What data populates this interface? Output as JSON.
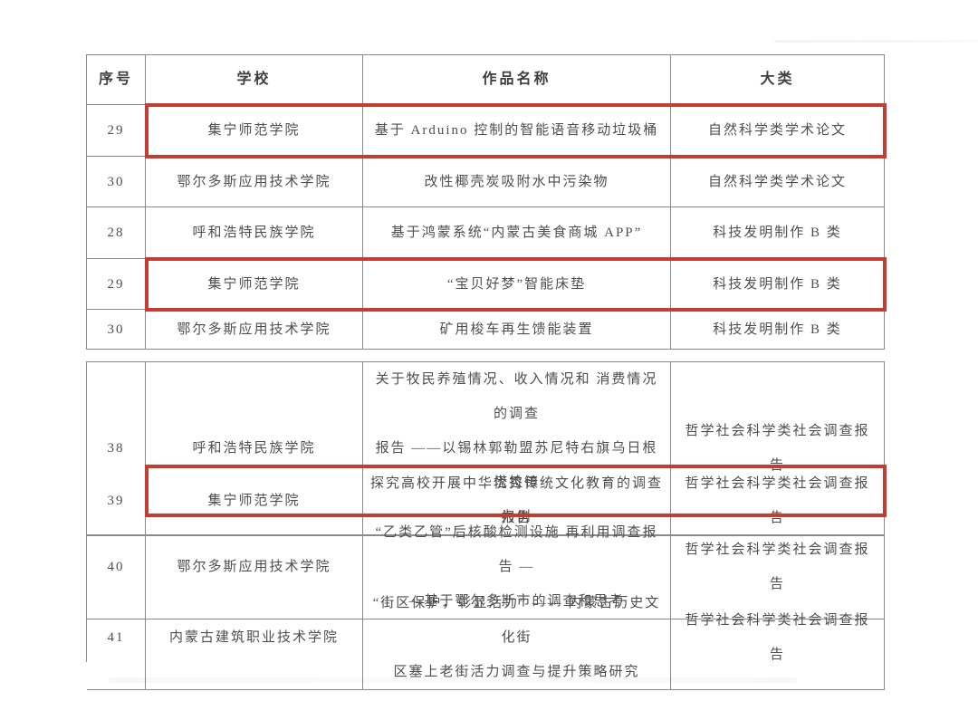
{
  "accent_red": "#c43d32",
  "border_gray": "#8a8a8a",
  "table": {
    "header": {
      "no": "序号",
      "school": "学校",
      "work": "作品名称",
      "category": "大类"
    },
    "section1": {
      "rows": [
        {
          "no": "29",
          "school": "集宁师范学院",
          "work": "基于 Arduino 控制的智能语音移动垃圾桶",
          "category": "自然科学类学术论文",
          "highlighted": true
        },
        {
          "no": "30",
          "school": "鄂尔多斯应用技术学院",
          "work": "改性椰壳炭吸附水中污染物",
          "category": "自然科学类学术论文",
          "highlighted": false
        },
        {
          "no": "28",
          "school": "呼和浩特民族学院",
          "work": "基于鸿蒙系统“内蒙古美食商城 APP”",
          "category": "科技发明制作 B 类",
          "highlighted": false
        },
        {
          "no": "29",
          "school": "集宁师范学院",
          "work": "“宝贝好梦”智能床垫",
          "category": "科技发明制作 B 类",
          "highlighted": true
        },
        {
          "no": "30",
          "school": "鄂尔多斯应用技术学院",
          "work": "矿用梭车再生馈能装置",
          "category": "科技发明制作 B 类",
          "highlighted": false
        }
      ]
    },
    "section2": {
      "rows": [
        {
          "no": "38",
          "school": "呼和浩特民族学院",
          "work": "关于牧民养殖情况、收入情况和 消费情况的调查\n报告 ——以锡林郭勒盟苏尼特右旗乌日根塔拉镇\n为例",
          "category": "哲学社会科学类社会调查报告",
          "highlighted": false
        },
        {
          "no": "39",
          "school": "集宁师范学院",
          "work": "探究高校开展中华优秀传统文化教育的调查报告",
          "category": "哲学社会科学类社会调查报告",
          "highlighted": true
        },
        {
          "no": "40",
          "school": "鄂尔多斯应用技术学院",
          "work": "“乙类乙管”后核酸检测设施 再利用调查报告 —\n—基于鄂尔多斯市的调查和思考",
          "category": "哲学社会科学类社会调查报告",
          "highlighted": false
        },
        {
          "no": "41",
          "school": "内蒙古建筑职业技术学院",
          "work": "“街区保护，彰显活力” —— 内蒙古历史文化街\n区塞上老街活力调查与提升策略研究",
          "category": "哲学社会科学类社会调查报告",
          "highlighted": false
        }
      ]
    }
  }
}
